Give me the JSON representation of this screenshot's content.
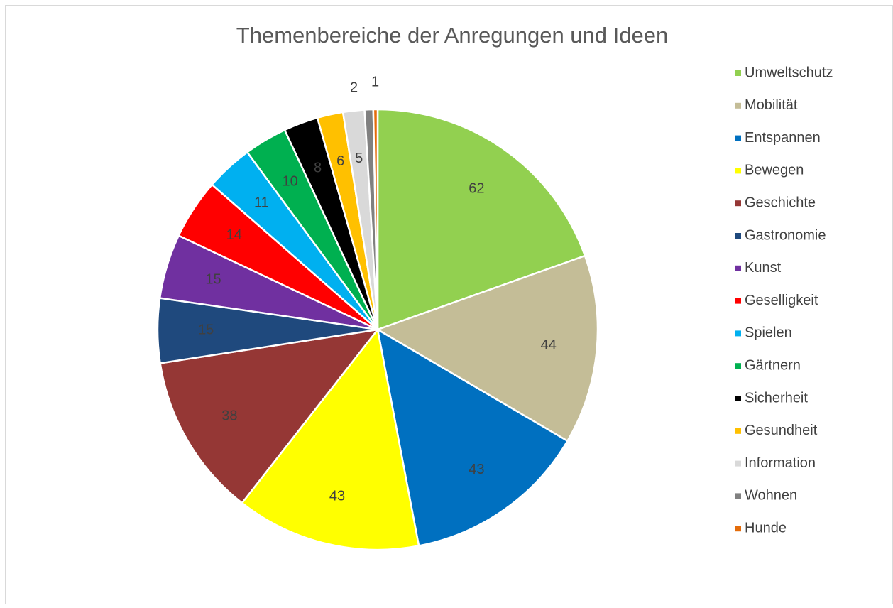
{
  "chart_data": {
    "type": "pie",
    "title": "Themenbereiche der Anregungen und Ideen",
    "categories": [
      "Umweltschutz",
      "Mobilität",
      "Entspannen",
      "Bewegen",
      "Geschichte",
      "Gastronomie",
      "Kunst",
      "Geselligkeit",
      "Spielen",
      "Gärtnern",
      "Sicherheit",
      "Gesundheit",
      "Information",
      "Wohnen",
      "Hunde"
    ],
    "values": [
      62,
      44,
      43,
      43,
      38,
      15,
      15,
      14,
      11,
      10,
      8,
      6,
      5,
      2,
      1
    ],
    "colors": [
      "#92d050",
      "#c4bd97",
      "#0070c0",
      "#ffff00",
      "#953735",
      "#1f497d",
      "#7030a0",
      "#ff0000",
      "#00b0f0",
      "#00b050",
      "#000000",
      "#ffc000",
      "#d9d9d9",
      "#808080",
      "#e46c0a"
    ],
    "legend": "right"
  }
}
